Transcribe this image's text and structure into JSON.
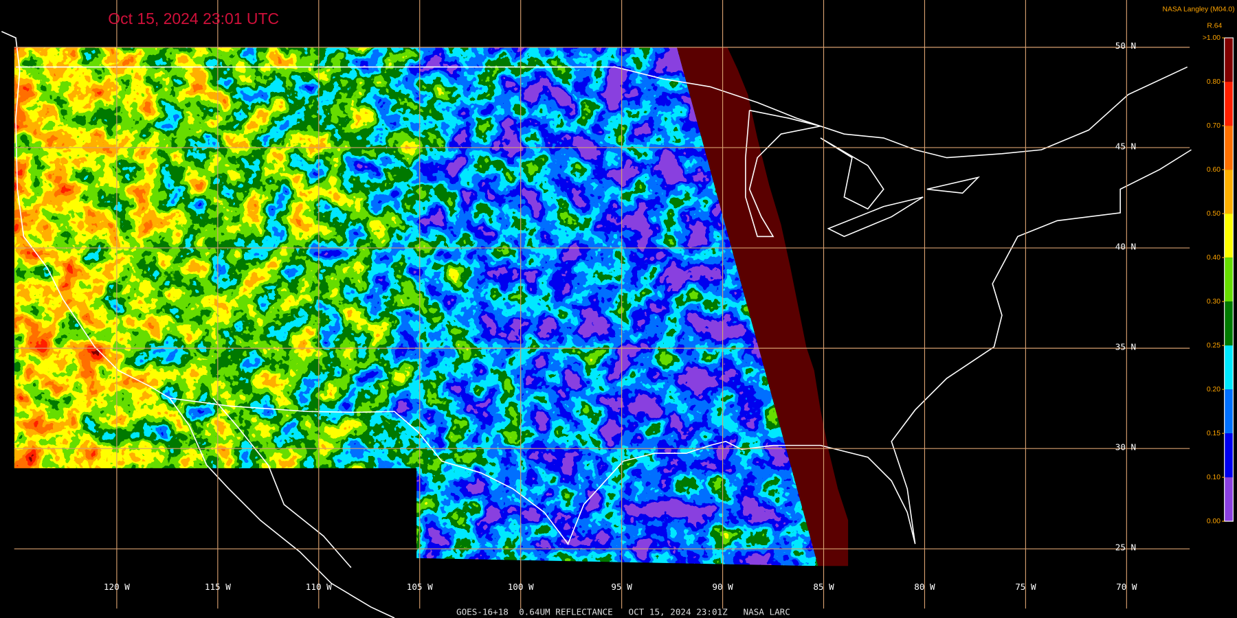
{
  "header": {
    "timestamp": "Oct 15, 2024 23:01 UTC",
    "credit": "NASA Langley (M04.0)"
  },
  "colorbar": {
    "label": "R.64",
    "ticks": [
      {
        "value": 1.0,
        "label": ">1.00"
      },
      {
        "value": 0.8,
        "label": "0.80"
      },
      {
        "value": 0.7,
        "label": "0.70"
      },
      {
        "value": 0.6,
        "label": "0.60"
      },
      {
        "value": 0.5,
        "label": "0.50"
      },
      {
        "value": 0.4,
        "label": "0.40"
      },
      {
        "value": 0.3,
        "label": "0.30"
      },
      {
        "value": 0.25,
        "label": "0.25"
      },
      {
        "value": 0.2,
        "label": "0.20"
      },
      {
        "value": 0.15,
        "label": "0.15"
      },
      {
        "value": 0.1,
        "label": "0.10"
      },
      {
        "value": 0,
        "label": "0.00"
      }
    ],
    "colors": [
      "#800000",
      "#ff2000",
      "#ff7000",
      "#ffb000",
      "#ffff00",
      "#66dd00",
      "#007a00",
      "#00e8ff",
      "#0070ff",
      "#0000f0",
      "#8a40e0"
    ]
  },
  "grid": {
    "latitudes": [
      {
        "value": 50,
        "label": "50 N"
      },
      {
        "value": 45,
        "label": "45 N"
      },
      {
        "value": 40,
        "label": "40 N"
      },
      {
        "value": 35,
        "label": "35 N"
      },
      {
        "value": 30,
        "label": "30 N"
      },
      {
        "value": 25,
        "label": "25 N"
      }
    ],
    "longitudes": [
      {
        "value": -120,
        "label": "120 W"
      },
      {
        "value": -115,
        "label": "115 W"
      },
      {
        "value": -110,
        "label": "110 W"
      },
      {
        "value": -105,
        "label": "105 W"
      },
      {
        "value": -100,
        "label": "100 W"
      },
      {
        "value": -95,
        "label": "95 W"
      },
      {
        "value": -90,
        "label": "90 W"
      },
      {
        "value": -85,
        "label": "85 W"
      },
      {
        "value": -80,
        "label": "80 W"
      },
      {
        "value": -75,
        "label": "75 W"
      },
      {
        "value": -70,
        "label": "70 W"
      }
    ]
  },
  "footer": {
    "text": "GOES-16+18  0.64UM REFLECTANCE   OCT 15, 2024 23:01Z   NASA LARC"
  }
}
